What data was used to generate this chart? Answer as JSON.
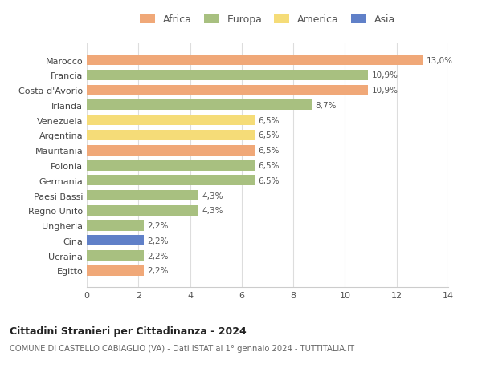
{
  "countries": [
    "Egitto",
    "Ucraina",
    "Cina",
    "Ungheria",
    "Regno Unito",
    "Paesi Bassi",
    "Germania",
    "Polonia",
    "Mauritania",
    "Argentina",
    "Venezuela",
    "Irlanda",
    "Costa d'Avorio",
    "Francia",
    "Marocco"
  ],
  "values": [
    2.2,
    2.2,
    2.2,
    2.2,
    4.3,
    4.3,
    6.5,
    6.5,
    6.5,
    6.5,
    6.5,
    8.7,
    10.9,
    10.9,
    13.0
  ],
  "bar_colors": [
    "#F0A878",
    "#A8C080",
    "#6080C8",
    "#A8C080",
    "#A8C080",
    "#A8C080",
    "#A8C080",
    "#A8C080",
    "#F0A878",
    "#F5DC78",
    "#F5DC78",
    "#A8C080",
    "#F0A878",
    "#A8C080",
    "#F0A878"
  ],
  "labels": [
    "2,2%",
    "2,2%",
    "2,2%",
    "2,2%",
    "4,3%",
    "4,3%",
    "6,5%",
    "6,5%",
    "6,5%",
    "6,5%",
    "6,5%",
    "8,7%",
    "10,9%",
    "10,9%",
    "13,0%"
  ],
  "title": "Cittadini Stranieri per Cittadinanza - 2024",
  "subtitle": "COMUNE DI CASTELLO CABIAGLIO (VA) - Dati ISTAT al 1° gennaio 2024 - TUTTITALIA.IT",
  "xlim": [
    0,
    14
  ],
  "xticks": [
    0,
    2,
    4,
    6,
    8,
    10,
    12,
    14
  ],
  "legend_labels": [
    "Africa",
    "Europa",
    "America",
    "Asia"
  ],
  "legend_colors": [
    "#F0A878",
    "#A8C080",
    "#F5DC78",
    "#6080C8"
  ],
  "background_color": "#ffffff",
  "grid_color": "#dddddd"
}
